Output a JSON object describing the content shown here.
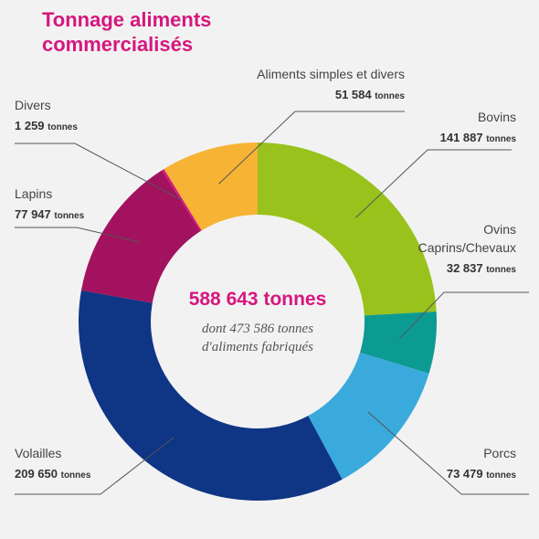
{
  "title_line1": "Tonnage aliments",
  "title_line2": "commercialisés",
  "center": {
    "total": "588 643 tonnes",
    "sub_line1": "dont 473 586 tonnes",
    "sub_line2": "d'aliments fabriqués"
  },
  "unit": "tonnes",
  "chart_data": {
    "type": "pie",
    "title": "Tonnage aliments commercialisés",
    "unit": "tonnes",
    "slices": [
      {
        "label": "Bovins",
        "value": 141887,
        "value_text": "141 887",
        "color": "#99c21c"
      },
      {
        "label": "Ovins Caprins/Chevaux",
        "label_lines": [
          "Ovins",
          "Caprins/Chevaux"
        ],
        "value": 32837,
        "value_text": "32 837",
        "color": "#0c9b92"
      },
      {
        "label": "Porcs",
        "value": 73479,
        "value_text": "73 479",
        "color": "#3aaadc"
      },
      {
        "label": "Volailles",
        "value": 209650,
        "value_text": "209 650",
        "color": "#0f3585"
      },
      {
        "label": "Lapins",
        "value": 77947,
        "value_text": "77 947",
        "color": "#a3125f"
      },
      {
        "label": "Divers",
        "value": 1259,
        "value_text": "1 259",
        "color": "#d6177f"
      },
      {
        "label": "Aliments simples et divers",
        "value": 51584,
        "value_text": "51 584",
        "color": "#f7b334"
      }
    ]
  }
}
